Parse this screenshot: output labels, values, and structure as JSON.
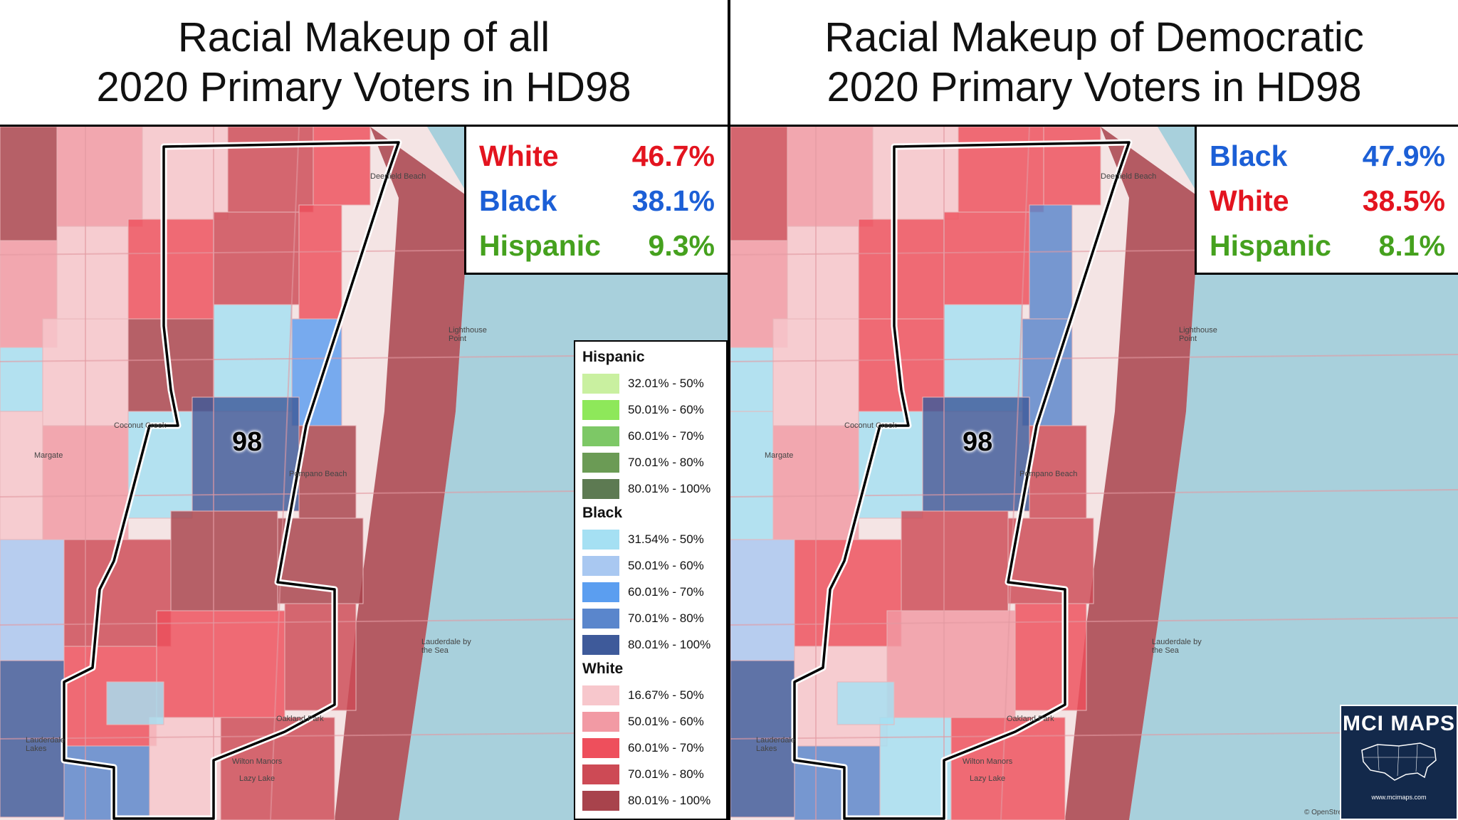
{
  "colors": {
    "water": "#a8d0dc",
    "white_band": [
      "#f7c7cc",
      "#f29aa4",
      "#ee4f5c",
      "#cd4a55",
      "#a8434c"
    ],
    "black_band": [
      "#a5e0f3",
      "#a9c8f1",
      "#5b9ef0",
      "#5a86cc",
      "#3e5a9a"
    ],
    "hispanic_band": [
      "#c9f0a0",
      "#8ee85a",
      "#7dc866",
      "#6b9b55",
      "#5d7a52"
    ]
  },
  "left": {
    "title_line1": "Racial Makeup of all",
    "title_line2": "2020 Primary Voters in HD98",
    "stats": [
      {
        "label": "White",
        "value": "46.7%",
        "color": "#e3141f"
      },
      {
        "label": "Black",
        "value": "38.1%",
        "color": "#1c5fd6"
      },
      {
        "label": "Hispanic",
        "value": "9.3%",
        "color": "#45a11e"
      }
    ],
    "district_number": "98"
  },
  "right": {
    "title_line1": "Racial Makeup of Democratic",
    "title_line2": "2020 Primary Voters in HD98",
    "stats": [
      {
        "label": "Black",
        "value": "47.9%",
        "color": "#1c5fd6"
      },
      {
        "label": "White",
        "value": "38.5%",
        "color": "#e3141f"
      },
      {
        "label": "Hispanic",
        "value": "8.1%",
        "color": "#45a11e"
      }
    ],
    "district_number": "98"
  },
  "legend": {
    "hispanic_title": "Hispanic",
    "hispanic": [
      "32.01% - 50%",
      "50.01% - 60%",
      "60.01% - 70%",
      "70.01% - 80%",
      "80.01% - 100%"
    ],
    "black_title": "Black",
    "black": [
      "31.54% - 50%",
      "50.01% - 60%",
      "60.01% - 70%",
      "70.01% - 80%",
      "80.01% - 100%"
    ],
    "white_title": "White",
    "white": [
      "16.67% - 50%",
      "50.01% - 60%",
      "60.01% - 70%",
      "70.01% - 80%",
      "80.01% - 100%"
    ]
  },
  "places": {
    "coconut_creek": "Coconut Creek",
    "margate": "Margate",
    "pompano_beach": "Pompano Beach",
    "oakland_park": "Oakland Park",
    "wilton_manors": "Wilton Manors",
    "lazy_lake": "Lazy Lake",
    "lauderdale_lakes": "Lauderdale Lakes",
    "lauderdale_by_the_sea": "Lauderdale by the Sea",
    "lighthouse_point": "Lighthouse Point",
    "deerfield_beach": "Deerfield Beach"
  },
  "badge": {
    "title": "MCI MAPS",
    "url": "www.mcimaps.com"
  },
  "credit": "© OpenStreetMap"
}
